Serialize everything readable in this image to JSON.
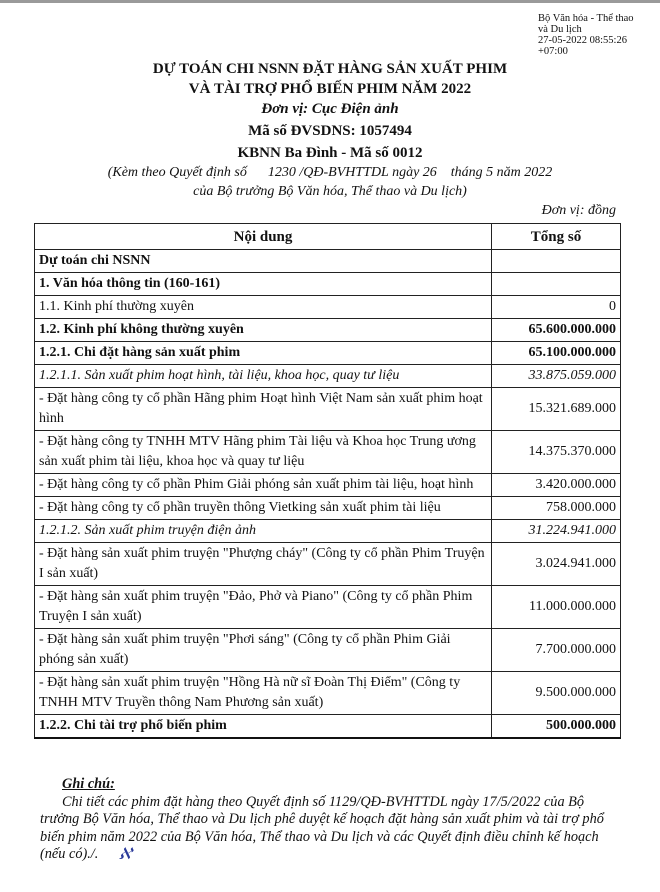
{
  "stamp": {
    "line1": "Bộ Văn hóa - Thể thao",
    "line2": "và Du lịch",
    "line3": "27-05-2022 08:55:26",
    "line4": "+07:00"
  },
  "header": {
    "title1": "DỰ TOÁN CHI NSNN ĐẶT HÀNG SẢN XUẤT PHIM",
    "title2": "VÀ TÀI TRỢ PHỔ BIẾN PHIM NĂM 2022",
    "unit": "Đơn vị: Cục Điện ảnh",
    "code": "Mã số ĐVSDNS: 1057494",
    "kbnn": "KBNN Ba Đình - Mã số 0012",
    "attach1": "(Kèm theo Quyết định số      1230 /QĐ-BVHTTDL ngày 26    tháng 5 năm 2022",
    "attach2": "của Bộ trưởng Bộ Văn hóa, Thể thao và Du lịch)"
  },
  "table": {
    "currency": "Đơn vị: đồng",
    "col1": "Nội dung",
    "col2": "Tổng số",
    "rows": [
      {
        "label": "Dự toán chi NSNN",
        "value": "",
        "style": "b"
      },
      {
        "label": "1. Văn hóa thông tin (160-161)",
        "value": "",
        "style": "b"
      },
      {
        "label": "1.1. Kinh phí thường xuyên",
        "value": "0",
        "style": ""
      },
      {
        "label": "1.2. Kinh phí không thường xuyên",
        "value": "65.600.000.000",
        "style": "b"
      },
      {
        "label": "1.2.1. Chi đặt hàng sản xuất phim",
        "value": "65.100.000.000",
        "style": "b"
      },
      {
        "label": "1.2.1.1. Sản xuất phim hoạt hình, tài liệu, khoa học, quay tư liệu",
        "value": "33.875.059.000",
        "style": "i"
      },
      {
        "label": "- Đặt hàng công ty cổ phần Hãng phim Hoạt hình Việt Nam sản xuất phim hoạt hình",
        "value": "15.321.689.000",
        "style": ""
      },
      {
        "label": "- Đặt hàng công ty TNHH MTV Hãng phim Tài liệu và Khoa học Trung ương sản xuất phim tài liệu, khoa học và quay tư liệu",
        "value": "14.375.370.000",
        "style": ""
      },
      {
        "label": "- Đặt hàng công ty cổ phần Phim Giải phóng sản xuất phim tài liệu, hoạt hình",
        "value": "3.420.000.000",
        "style": ""
      },
      {
        "label": "- Đặt hàng công ty cổ phần truyền thông Vietking sản xuất phim tài liệu",
        "value": "758.000.000",
        "style": ""
      },
      {
        "label": "1.2.1.2. Sản xuất phim truyện điện ảnh",
        "value": "31.224.941.000",
        "style": "i"
      },
      {
        "label": "- Đặt hàng sản xuất phim truyện \"Phượng cháy\" (Công ty cổ phần Phim Truyện I sản xuất)",
        "value": "3.024.941.000",
        "style": ""
      },
      {
        "label": "- Đặt hàng sản xuất phim truyện \"Đảo, Phở và Piano\" (Công ty cổ phần Phim Truyện I sản xuất)",
        "value": "11.000.000.000",
        "style": ""
      },
      {
        "label": "- Đặt hàng sản xuất phim truyện \"Phơi sáng\" (Công ty cổ phần Phim Giải phóng sản xuất)",
        "value": "7.700.000.000",
        "style": ""
      },
      {
        "label": "- Đặt hàng sản xuất phim truyện \"Hồng Hà nữ sĩ Đoàn Thị Điểm\" (Công ty TNHH MTV Truyền thông Nam Phương sản xuất)",
        "value": "9.500.000.000",
        "style": ""
      },
      {
        "label": "1.2.2. Chi tài trợ phổ biến phim",
        "value": "500.000.000",
        "style": "b bb"
      }
    ]
  },
  "notes": {
    "heading": "Ghi chú:",
    "text": "Chi tiết các phim đặt hàng theo Quyết định số 1129/QĐ-BVHTTDL ngày 17/5/2022 của Bộ trưởng Bộ Văn hóa, Thể thao và Du lịch phê duyệt kế hoạch đặt hàng sản xuất phim và tài trợ phổ biến phim năm 2022 của Bộ Văn hóa, Thể thao và Du lịch và các Quyết định điều chỉnh kế hoạch (nếu có)./.",
    "signature": "Kt"
  }
}
